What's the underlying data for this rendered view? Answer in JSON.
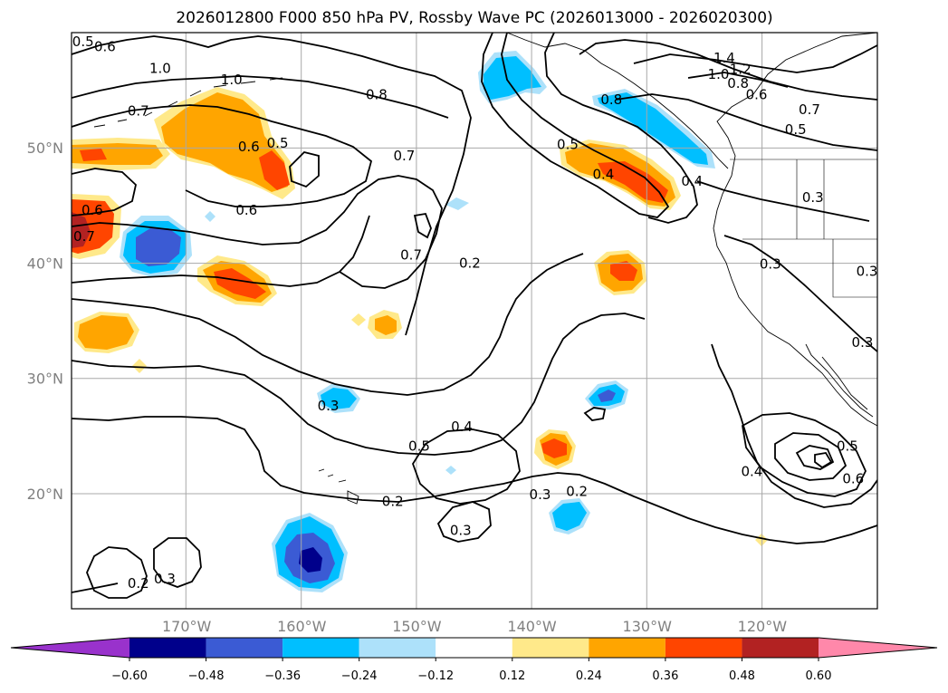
{
  "chart_data": {
    "type": "contour_map",
    "title": "2026012800 F000 850 hPa PV, Rossby Wave PC (2026013000 - 2026020300)",
    "lon_range": [
      -180,
      -110
    ],
    "lat_range": [
      10,
      60
    ],
    "lon_ticks": [
      {
        "value": -170,
        "label": "170°W"
      },
      {
        "value": -160,
        "label": "160°W"
      },
      {
        "value": -150,
        "label": "150°W"
      },
      {
        "value": -140,
        "label": "140°W"
      },
      {
        "value": -130,
        "label": "130°W"
      },
      {
        "value": -120,
        "label": "120°W"
      }
    ],
    "lat_ticks": [
      {
        "value": 20,
        "label": "20°N"
      },
      {
        "value": 30,
        "label": "30°N"
      },
      {
        "value": 40,
        "label": "40°N"
      },
      {
        "value": 50,
        "label": "50°N"
      }
    ],
    "colorbar": {
      "levels": [
        -0.6,
        -0.48,
        -0.36,
        -0.24,
        -0.12,
        0.12,
        0.24,
        0.36,
        0.48,
        0.6
      ],
      "tick_labels": [
        "−0.60",
        "−0.48",
        "−0.36",
        "−0.24",
        "−0.12",
        "0.12",
        "0.24",
        "0.36",
        "0.48",
        "0.60"
      ],
      "colors": [
        "#9932CC",
        "#00008B",
        "#3B5BD4",
        "#00BFFF",
        "#ADE1FA",
        "#FFFFFF",
        "#FFE98A",
        "#FFA500",
        "#FF4500",
        "#B22222",
        "#FF88AA"
      ]
    },
    "pv_contour_labels": [
      {
        "text": "0.5",
        "lon": -179,
        "lat": 59.2
      },
      {
        "text": "0.6",
        "lon": -177.1,
        "lat": 58.8
      },
      {
        "text": "1.0",
        "lon": -172.3,
        "lat": 56.9
      },
      {
        "text": "1.0",
        "lon": -166.1,
        "lat": 55.9
      },
      {
        "text": "0.8",
        "lon": -153.5,
        "lat": 54.6
      },
      {
        "text": "0.7",
        "lon": -174.2,
        "lat": 53.2
      },
      {
        "text": "0.6",
        "lon": -164.6,
        "lat": 50.1
      },
      {
        "text": "0.5",
        "lon": -162.1,
        "lat": 50.4
      },
      {
        "text": "0.7",
        "lon": -151.1,
        "lat": 49.3
      },
      {
        "text": "0.6",
        "lon": -178.2,
        "lat": 44.6
      },
      {
        "text": "0.6",
        "lon": -164.8,
        "lat": 44.6
      },
      {
        "text": "0.7",
        "lon": -178.9,
        "lat": 42.3
      },
      {
        "text": "0.7",
        "lon": -150.5,
        "lat": 40.7
      },
      {
        "text": "0.2",
        "lon": -145.4,
        "lat": 40.0
      },
      {
        "text": "0.3",
        "lon": -157.7,
        "lat": 27.6
      },
      {
        "text": "0.5",
        "lon": -149.8,
        "lat": 24.1
      },
      {
        "text": "0.4",
        "lon": -146.1,
        "lat": 25.8
      },
      {
        "text": "0.2",
        "lon": -152.1,
        "lat": 19.3
      },
      {
        "text": "0.3",
        "lon": -146.2,
        "lat": 16.8
      },
      {
        "text": "0.3",
        "lon": -139.3,
        "lat": 19.9
      },
      {
        "text": "0.2",
        "lon": -136.1,
        "lat": 20.2
      },
      {
        "text": "0.2",
        "lon": -174.2,
        "lat": 12.2
      },
      {
        "text": "0.3",
        "lon": -171.9,
        "lat": 12.6
      },
      {
        "text": "1.4",
        "lon": -123.3,
        "lat": 57.8
      },
      {
        "text": "1.2",
        "lon": -121.9,
        "lat": 56.8
      },
      {
        "text": "1.0",
        "lon": -123.8,
        "lat": 56.4
      },
      {
        "text": "0.8",
        "lon": -122.1,
        "lat": 55.6
      },
      {
        "text": "0.6",
        "lon": -120.5,
        "lat": 54.6
      },
      {
        "text": "0.7",
        "lon": -115.9,
        "lat": 53.3
      },
      {
        "text": "0.5",
        "lon": -117.1,
        "lat": 51.6
      },
      {
        "text": "0.8",
        "lon": -133.1,
        "lat": 54.2
      },
      {
        "text": "0.5",
        "lon": -136.9,
        "lat": 50.3
      },
      {
        "text": "0.4",
        "lon": -133.8,
        "lat": 47.7
      },
      {
        "text": "0.4",
        "lon": -126.1,
        "lat": 47.1
      },
      {
        "text": "0.3",
        "lon": -115.6,
        "lat": 45.7
      },
      {
        "text": "0.3",
        "lon": -119.3,
        "lat": 39.9
      },
      {
        "text": "0.3",
        "lon": -110.9,
        "lat": 39.3
      },
      {
        "text": "0.3",
        "lon": -111.3,
        "lat": 33.1
      },
      {
        "text": "0.4",
        "lon": -120.9,
        "lat": 21.9
      },
      {
        "text": "0.5",
        "lon": -112.6,
        "lat": 24.1
      },
      {
        "text": "0.6",
        "lon": -112.1,
        "lat": 21.3
      }
    ]
  }
}
